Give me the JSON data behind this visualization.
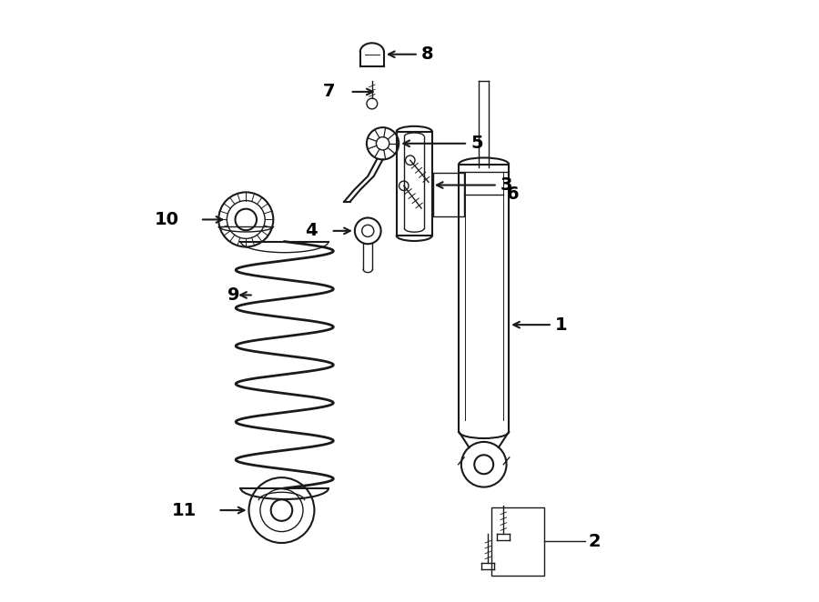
{
  "bg_color": "#ffffff",
  "fig_width": 9.0,
  "fig_height": 6.62,
  "dpi": 100,
  "line_color": "#1a1a1a",
  "text_color": "#000000",
  "font_size": 14,
  "lw_main": 1.5,
  "lw_thin": 1.0
}
